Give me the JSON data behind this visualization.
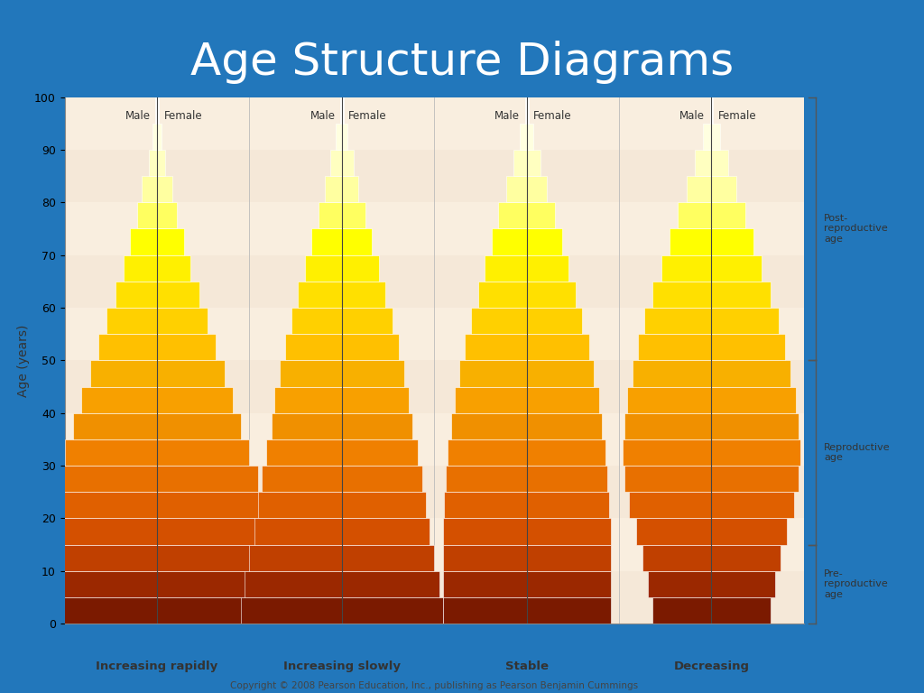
{
  "title": "Age Structure Diagrams",
  "title_fontsize": 36,
  "title_color": "white",
  "bg_color": "#2277bb",
  "chart_bg": "#fdf5e6",
  "copyright": "Copyright © 2008 Pearson Education, Inc., publishing as Pearson Benjamin Cummings",
  "ylabel": "Age (years)",
  "populations": [
    "Increasing rapidly",
    "Increasing slowly",
    "Stable",
    "Decreasing"
  ],
  "age_groups": [
    0,
    5,
    10,
    15,
    20,
    25,
    30,
    35,
    40,
    45,
    50,
    55,
    60,
    65,
    70,
    75,
    80,
    85,
    90,
    95
  ],
  "segment_colors": [
    "#7B1A00",
    "#9B2800",
    "#C04000",
    "#D45000",
    "#E06000",
    "#E87000",
    "#F08000",
    "#F09000",
    "#F8A000",
    "#F8B000",
    "#FFC000",
    "#FFD000",
    "#FFE000",
    "#FFF000",
    "#FFFF00",
    "#FFFF60",
    "#FFFFA0",
    "#FFFFC0",
    "#FFFFE0",
    "#FFFFFF"
  ],
  "widths": {
    "Increasing rapidly": [
      9.0,
      8.5,
      7.5,
      7.0,
      6.5,
      6.0,
      5.5,
      5.0,
      4.5,
      4.0,
      3.5,
      3.0,
      2.5,
      2.0,
      1.6,
      1.2,
      0.9,
      0.5,
      0.25,
      0.1
    ],
    "Increasing slowly": [
      6.0,
      5.8,
      5.5,
      5.2,
      5.0,
      4.8,
      4.5,
      4.2,
      4.0,
      3.7,
      3.4,
      3.0,
      2.6,
      2.2,
      1.8,
      1.4,
      1.0,
      0.7,
      0.35,
      0.1
    ],
    "Stable": [
      5.0,
      5.0,
      5.0,
      5.0,
      4.9,
      4.8,
      4.7,
      4.5,
      4.3,
      4.0,
      3.7,
      3.3,
      2.9,
      2.5,
      2.1,
      1.7,
      1.2,
      0.8,
      0.4,
      0.1
    ],
    "Decreasing": [
      3.5,
      3.8,
      4.1,
      4.5,
      4.9,
      5.2,
      5.3,
      5.2,
      5.0,
      4.7,
      4.4,
      4.0,
      3.5,
      3.0,
      2.5,
      2.0,
      1.5,
      1.0,
      0.5,
      0.1
    ]
  },
  "divider_color": "#444444",
  "age_labels": {
    "post_reproductive": "Post-\nreproductive\nage",
    "reproductive": "Reproductive\nage",
    "pre_reproductive": "Pre-\nreproductive\nage"
  },
  "stripe_colors": [
    "#f5e8d8",
    "#f9eedf"
  ],
  "yticks": [
    0,
    10,
    20,
    30,
    40,
    50,
    60,
    70,
    80,
    90,
    100
  ]
}
